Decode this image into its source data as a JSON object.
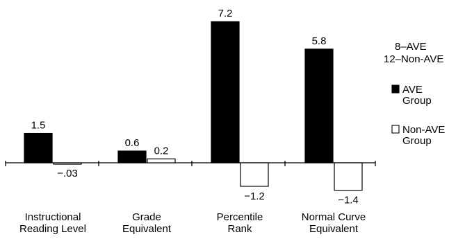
{
  "chart_data": {
    "type": "bar",
    "categories": [
      [
        "Instructional",
        "Reading Level"
      ],
      [
        "Grade",
        "Equivalent"
      ],
      [
        "Percentile",
        "Rank"
      ],
      [
        "Normal Curve",
        "Equivalent"
      ]
    ],
    "series": [
      {
        "name": "AVE Group",
        "legend_lines": [
          "AVE",
          "Group"
        ],
        "fill": "#000000",
        "values": [
          1.5,
          0.6,
          7.2,
          5.8
        ],
        "value_labels": [
          "1.5",
          "0.6",
          "7.2",
          "5.8"
        ]
      },
      {
        "name": "Non-AVE Group",
        "legend_lines": [
          "Non-AVE",
          "Group"
        ],
        "fill": "#ffffff",
        "values": [
          -0.03,
          0.2,
          -1.2,
          -1.4
        ],
        "value_labels": [
          "-.03",
          "0.2",
          "-1.2",
          "-1.4"
        ]
      }
    ],
    "ylim": [
      -1.6,
      7.5
    ],
    "grid": false,
    "legend_placement": "right",
    "sample_note": [
      "8-AVE",
      "12-Non-AVE"
    ],
    "xlabel": "",
    "ylabel": "",
    "title": ""
  }
}
